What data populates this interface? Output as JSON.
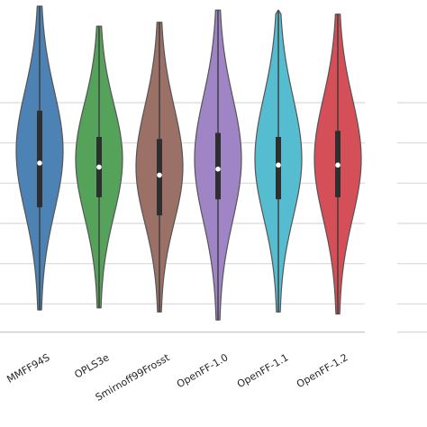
{
  "chart_data": {
    "type": "violin",
    "categories": [
      "MMFF94S",
      "OPLS3e",
      "Smirnoff99Frosst",
      "OpenFF-1.0",
      "OpenFF-1.1",
      "OpenFF-1.2"
    ],
    "colors": [
      "#4c82b4",
      "#55a25a",
      "#9b7066",
      "#9f84c6",
      "#56bdd0",
      "#d44f57"
    ],
    "y_gridlines": [
      1,
      2,
      3,
      4,
      5,
      6
    ],
    "grid": true,
    "series": [
      {
        "whisker_low": 0.85,
        "q1": 3.4,
        "median": 4.5,
        "q3": 5.8,
        "whisker_high": 8.4,
        "density_peak": 4.8
      },
      {
        "whisker_low": 0.9,
        "q1": 3.65,
        "median": 4.4,
        "q3": 5.15,
        "whisker_high": 7.9,
        "density_peak": 4.6
      },
      {
        "whisker_low": 0.8,
        "q1": 3.2,
        "median": 4.2,
        "q3": 5.1,
        "whisker_high": 8.0,
        "density_peak": 4.4
      },
      {
        "whisker_low": 0.6,
        "q1": 3.6,
        "median": 4.35,
        "q3": 5.25,
        "whisker_high": 8.3,
        "density_peak": 4.6
      },
      {
        "whisker_low": 0.8,
        "q1": 3.6,
        "median": 4.45,
        "q3": 5.15,
        "whisker_high": 8.3,
        "density_peak": 4.6
      },
      {
        "whisker_low": 0.75,
        "q1": 3.65,
        "median": 4.45,
        "q3": 5.3,
        "whisker_high": 8.2,
        "density_peak": 4.6
      }
    ]
  }
}
